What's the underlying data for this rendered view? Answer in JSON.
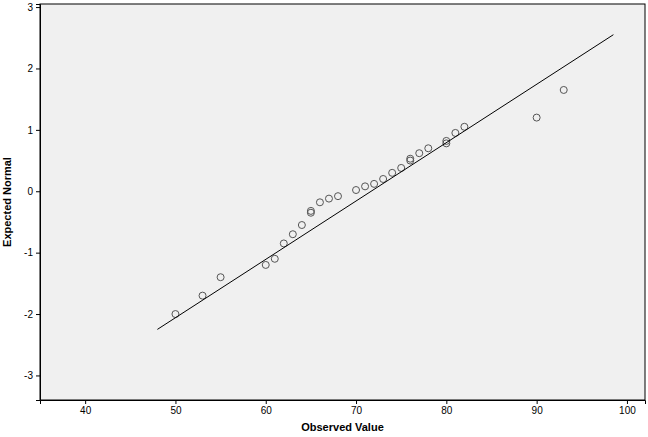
{
  "chart_data": {
    "type": "scatter",
    "x_label": "Observed Value",
    "y_label": "Expected Normal",
    "xlim": [
      35,
      102
    ],
    "ylim": [
      -3.4,
      3.05
    ],
    "xticks": [
      40,
      50,
      60,
      70,
      80,
      90,
      100
    ],
    "yticks": [
      -3,
      -2,
      -1,
      0,
      1,
      2,
      3
    ],
    "grid": false,
    "series": [
      {
        "type": "scatter",
        "marker": "open_circle",
        "color": "#555555",
        "x": [
          50,
          53,
          55,
          60,
          61,
          62,
          63,
          64,
          65,
          65,
          66,
          67,
          68,
          70,
          71,
          72,
          73,
          74,
          75,
          76,
          76,
          77,
          78,
          80,
          80,
          81,
          82,
          90,
          93
        ],
        "values": [
          -2.0,
          -1.7,
          -1.4,
          -1.2,
          -1.1,
          -0.85,
          -0.7,
          -0.55,
          -0.35,
          -0.32,
          -0.18,
          -0.12,
          -0.08,
          0.02,
          0.08,
          0.12,
          0.2,
          0.3,
          0.38,
          0.5,
          0.53,
          0.62,
          0.7,
          0.78,
          0.82,
          0.95,
          1.05,
          1.2,
          1.65
        ]
      },
      {
        "type": "line",
        "line_style": "solid",
        "color": "#000000",
        "x": [
          48,
          98.5
        ],
        "values": [
          -2.25,
          2.55
        ]
      }
    ]
  }
}
